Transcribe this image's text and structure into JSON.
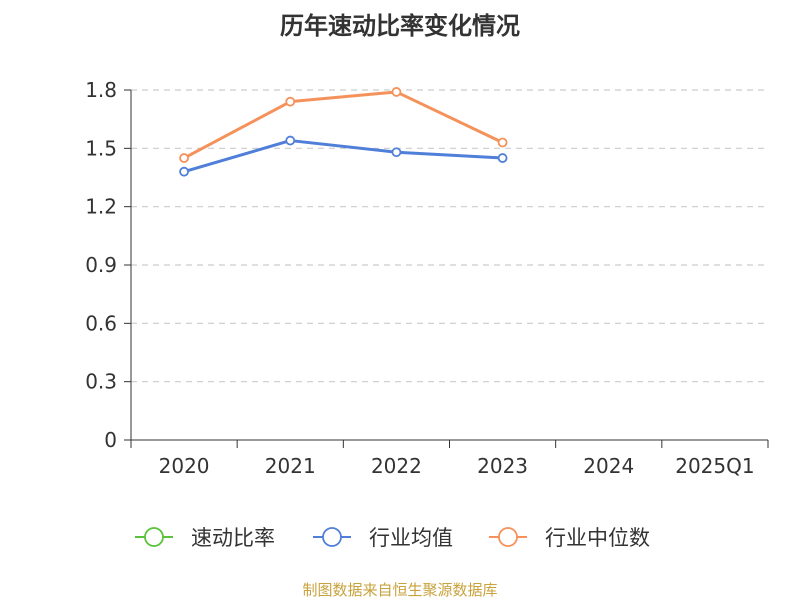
{
  "chart_data": {
    "type": "line",
    "title": "历年速动比率变化情况",
    "categories": [
      "2020",
      "2021",
      "2022",
      "2023",
      "2024",
      "2025Q1"
    ],
    "y_ticks": [
      "0",
      "0.3",
      "0.6",
      "0.9",
      "1.2",
      "1.5",
      "1.8"
    ],
    "ylim": [
      0,
      1.8
    ],
    "grid": true,
    "legend_position": "bottom",
    "series": [
      {
        "name": "速动比率",
        "color": "#5cc23b",
        "values": [
          null,
          null,
          null,
          null,
          null,
          null
        ]
      },
      {
        "name": "行业均值",
        "color": "#4f7fd9",
        "values": [
          1.38,
          1.54,
          1.48,
          1.45,
          null,
          null
        ]
      },
      {
        "name": "行业中位数",
        "color": "#f5915a",
        "values": [
          1.45,
          1.74,
          1.79,
          1.53,
          null,
          null
        ]
      }
    ]
  },
  "source_note": "制图数据来自恒生聚源数据库"
}
